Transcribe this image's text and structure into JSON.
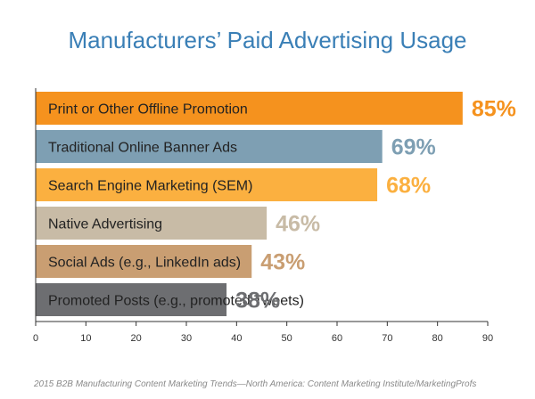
{
  "chart_data": {
    "type": "bar",
    "orientation": "horizontal",
    "title": "Manufacturers’ Paid Advertising Usage",
    "categories": [
      "Print or Other Offline Promotion",
      "Traditional Online Banner Ads",
      "Search Engine Marketing (SEM)",
      "Native Advertising",
      "Social Ads (e.g., LinkedIn ads)",
      "Promoted Posts (e.g., promoted Tweets)"
    ],
    "values": [
      85,
      69,
      68,
      46,
      43,
      38
    ],
    "value_labels": [
      "85%",
      "69%",
      "68%",
      "46%",
      "43%",
      "38%"
    ],
    "colors": [
      "#f5921e",
      "#7e9fb3",
      "#fbb040",
      "#c8bba6",
      "#c99e72",
      "#6d6e71"
    ],
    "xlim": [
      0,
      90
    ],
    "xticks": [
      0,
      10,
      20,
      30,
      40,
      50,
      60,
      70,
      80,
      90
    ],
    "xlabel": "",
    "ylabel": "",
    "grid": false,
    "legend": "none"
  },
  "source": "2015 B2B Manufacturing Content Marketing Trends—North America: Content Marketing Institute/MarketingProfs"
}
